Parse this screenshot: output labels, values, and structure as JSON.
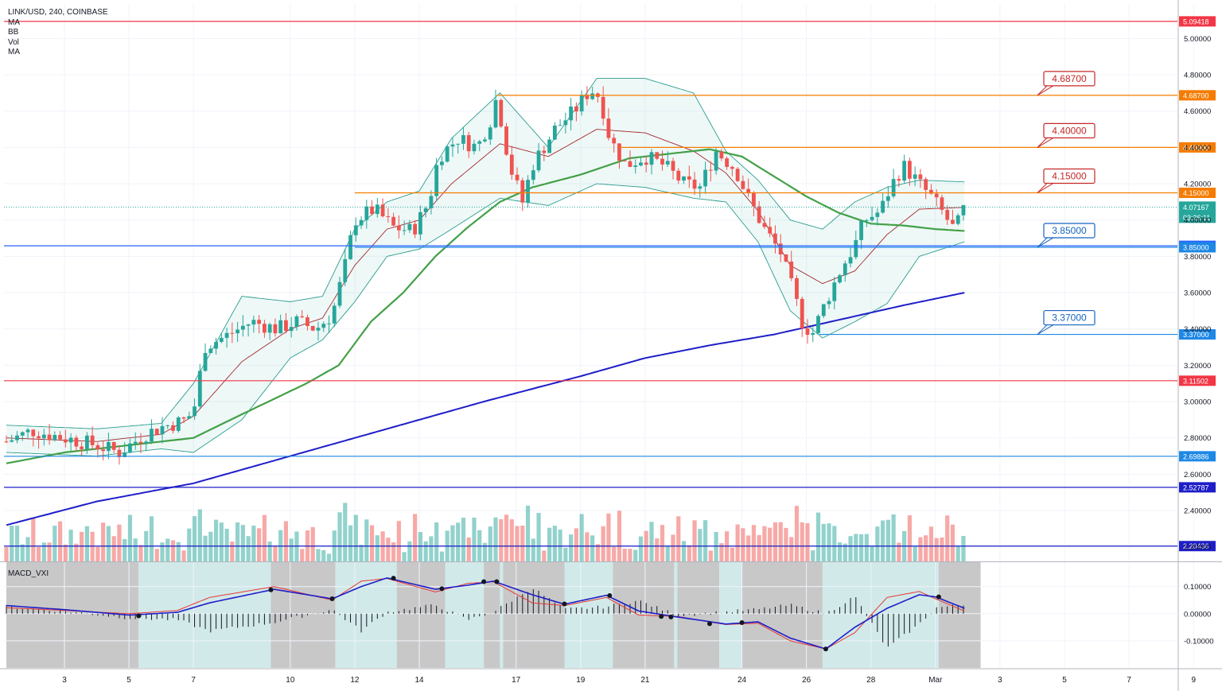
{
  "header": {
    "symbol_line": "LINK/USD, 240, COINBASE",
    "indicators": [
      "MA",
      "BB",
      "Vol",
      "MA"
    ]
  },
  "macd_title": "MACD_VXI",
  "chart_data": {
    "type": "candlestick",
    "symbol": "LINK/USD",
    "interval": "240",
    "exchange": "COINBASE",
    "price_axis": {
      "ylim": [
        2.12,
        5.19
      ],
      "ticks": [
        "5.00000",
        "4.80000",
        "4.60000",
        "4.40000",
        "4.20000",
        "4.00000",
        "3.80000",
        "3.60000",
        "3.40000",
        "3.20000",
        "3.00000",
        "2.80000",
        "2.60000",
        "2.40000",
        "2.20000"
      ]
    },
    "time_axis": {
      "labels": [
        {
          "text": "3",
          "day": 3
        },
        {
          "text": "5",
          "day": 5
        },
        {
          "text": "7",
          "day": 7
        },
        {
          "text": "10",
          "day": 10
        },
        {
          "text": "12",
          "day": 12
        },
        {
          "text": "14",
          "day": 14
        },
        {
          "text": "17",
          "day": 17
        },
        {
          "text": "19",
          "day": 19
        },
        {
          "text": "21",
          "day": 21
        },
        {
          "text": "24",
          "day": 24
        },
        {
          "text": "26",
          "day": 26
        },
        {
          "text": "28",
          "day": 28
        },
        {
          "text": "Mar",
          "day": 30
        },
        {
          "text": "3",
          "day": 32
        },
        {
          "text": "5",
          "day": 34
        },
        {
          "text": "7",
          "day": 36
        },
        {
          "text": "9",
          "day": 38
        }
      ]
    },
    "horizontal_levels": [
      {
        "value": 5.09418,
        "label": "5.09418",
        "color": "#f23645",
        "style": "line"
      },
      {
        "value": 4.687,
        "label": "4.68700",
        "color": "#f57c00",
        "style": "line",
        "start_day": 16.4
      },
      {
        "value": 4.4,
        "label": "4.40000",
        "color": "#f57c00",
        "style": "line",
        "start_day": 20.2
      },
      {
        "value": 4.15,
        "label": "4.15000",
        "color": "#f57c00",
        "style": "line",
        "start_day": 12.0
      },
      {
        "value": 3.85805,
        "label": "3.85805",
        "color": "#2962ff",
        "style": "line"
      },
      {
        "value": 3.85,
        "label": "3.85000",
        "color": "#1e88e5",
        "style": "line",
        "start_day": 12.0
      },
      {
        "value": 3.37,
        "label": "3.37000",
        "color": "#1e88e5",
        "style": "line",
        "start_day": 26.4
      },
      {
        "value": 3.11502,
        "label": "3.11502",
        "color": "#f23645",
        "style": "line"
      },
      {
        "value": 2.69886,
        "label": "2.69886",
        "color": "#1e88e5",
        "style": "line"
      },
      {
        "value": 2.52787,
        "label": "2.52787",
        "color": "#1e1ec8",
        "style": "line"
      },
      {
        "value": 2.20436,
        "label": "2.20436",
        "color": "#1e1ec8",
        "style": "line"
      }
    ],
    "callouts": [
      {
        "text": "4.68700",
        "value": 4.687,
        "color": "#c62828"
      },
      {
        "text": "4.40000",
        "value": 4.4,
        "color": "#c62828"
      },
      {
        "text": "4.15000",
        "value": 4.15,
        "color": "#c62828"
      },
      {
        "text": "3.85000",
        "value": 3.85,
        "color": "#1565c0"
      },
      {
        "text": "3.37000",
        "value": 3.37,
        "color": "#1565c0"
      }
    ],
    "last_price": {
      "value": 4.07167,
      "label": "4.07167",
      "countdown": "03:26:11",
      "color": "#26a69a"
    },
    "ohlc_waypoints": [
      [
        1.2,
        2.78
      ],
      [
        2.0,
        2.84
      ],
      [
        3.0,
        2.8
      ],
      [
        4.0,
        2.76
      ],
      [
        4.7,
        2.72
      ],
      [
        5.5,
        2.82
      ],
      [
        6.0,
        2.86
      ],
      [
        6.8,
        2.9
      ],
      [
        7.1,
        3.0
      ],
      [
        7.3,
        3.3
      ],
      [
        8.0,
        3.36
      ],
      [
        8.8,
        3.44
      ],
      [
        9.6,
        3.4
      ],
      [
        10.2,
        3.44
      ],
      [
        10.8,
        3.4
      ],
      [
        11.3,
        3.48
      ],
      [
        11.7,
        3.75
      ],
      [
        12.0,
        4.0
      ],
      [
        12.6,
        4.06
      ],
      [
        13.2,
        3.96
      ],
      [
        13.8,
        3.94
      ],
      [
        14.3,
        4.1
      ],
      [
        14.6,
        4.35
      ],
      [
        15.2,
        4.45
      ],
      [
        15.8,
        4.4
      ],
      [
        16.2,
        4.55
      ],
      [
        16.4,
        4.68
      ],
      [
        16.8,
        4.3
      ],
      [
        17.2,
        4.1
      ],
      [
        17.5,
        4.3
      ],
      [
        18.2,
        4.5
      ],
      [
        18.8,
        4.6
      ],
      [
        19.3,
        4.72
      ],
      [
        19.6,
        4.68
      ],
      [
        19.9,
        4.45
      ],
      [
        20.4,
        4.3
      ],
      [
        21.0,
        4.35
      ],
      [
        21.6,
        4.3
      ],
      [
        22.2,
        4.2
      ],
      [
        22.7,
        4.18
      ],
      [
        23.2,
        4.38
      ],
      [
        23.8,
        4.28
      ],
      [
        24.2,
        4.12
      ],
      [
        24.7,
        3.95
      ],
      [
        25.2,
        3.82
      ],
      [
        25.6,
        3.6
      ],
      [
        25.9,
        3.42
      ],
      [
        26.2,
        3.38
      ],
      [
        26.6,
        3.55
      ],
      [
        27.1,
        3.74
      ],
      [
        27.5,
        3.86
      ],
      [
        27.8,
        4.0
      ],
      [
        28.3,
        4.05
      ],
      [
        28.6,
        4.18
      ],
      [
        29.0,
        4.3
      ],
      [
        29.5,
        4.2
      ],
      [
        29.9,
        4.12
      ],
      [
        30.3,
        4.02
      ],
      [
        30.6,
        3.94
      ],
      [
        30.9,
        4.07
      ]
    ],
    "bollinger_bands": {
      "upper": [
        [
          1.2,
          2.87
        ],
        [
          4.0,
          2.85
        ],
        [
          6.0,
          2.88
        ],
        [
          7.0,
          3.1
        ],
        [
          8.5,
          3.58
        ],
        [
          10.0,
          3.55
        ],
        [
          11.0,
          3.58
        ],
        [
          12.0,
          3.95
        ],
        [
          13.0,
          4.1
        ],
        [
          14.0,
          4.16
        ],
        [
          15.0,
          4.45
        ],
        [
          16.5,
          4.7
        ],
        [
          18.0,
          4.4
        ],
        [
          19.5,
          4.78
        ],
        [
          21.0,
          4.78
        ],
        [
          22.5,
          4.7
        ],
        [
          23.5,
          4.38
        ],
        [
          24.5,
          4.22
        ],
        [
          25.5,
          4.0
        ],
        [
          26.5,
          3.95
        ],
        [
          27.5,
          4.1
        ],
        [
          28.5,
          4.18
        ],
        [
          29.5,
          4.22
        ],
        [
          30.9,
          4.21
        ]
      ],
      "middle": [
        [
          1.2,
          2.8
        ],
        [
          4.0,
          2.78
        ],
        [
          6.0,
          2.82
        ],
        [
          7.0,
          2.92
        ],
        [
          8.5,
          3.22
        ],
        [
          10.0,
          3.4
        ],
        [
          11.0,
          3.46
        ],
        [
          12.0,
          3.75
        ],
        [
          13.0,
          3.95
        ],
        [
          14.0,
          4.0
        ],
        [
          15.0,
          4.2
        ],
        [
          16.5,
          4.42
        ],
        [
          18.0,
          4.35
        ],
        [
          19.5,
          4.5
        ],
        [
          21.0,
          4.48
        ],
        [
          22.5,
          4.38
        ],
        [
          23.5,
          4.26
        ],
        [
          24.5,
          4.05
        ],
        [
          25.5,
          3.75
        ],
        [
          26.5,
          3.65
        ],
        [
          27.5,
          3.72
        ],
        [
          28.5,
          3.92
        ],
        [
          29.5,
          4.06
        ],
        [
          30.9,
          4.07
        ]
      ],
      "lower": [
        [
          1.2,
          2.72
        ],
        [
          4.0,
          2.7
        ],
        [
          6.0,
          2.74
        ],
        [
          7.0,
          2.72
        ],
        [
          8.5,
          2.9
        ],
        [
          10.0,
          3.24
        ],
        [
          11.0,
          3.34
        ],
        [
          12.0,
          3.55
        ],
        [
          13.0,
          3.8
        ],
        [
          14.0,
          3.84
        ],
        [
          15.0,
          3.95
        ],
        [
          16.5,
          4.12
        ],
        [
          18.0,
          4.08
        ],
        [
          19.5,
          4.2
        ],
        [
          21.0,
          4.18
        ],
        [
          22.5,
          4.12
        ],
        [
          23.5,
          4.1
        ],
        [
          24.5,
          3.88
        ],
        [
          25.5,
          3.5
        ],
        [
          26.5,
          3.35
        ],
        [
          27.5,
          3.44
        ],
        [
          28.5,
          3.54
        ],
        [
          29.5,
          3.8
        ],
        [
          30.9,
          3.88
        ]
      ]
    },
    "ma_green": [
      [
        1.2,
        2.66
      ],
      [
        3.0,
        2.72
      ],
      [
        5.0,
        2.76
      ],
      [
        7.0,
        2.8
      ],
      [
        8.5,
        2.93
      ],
      [
        10.5,
        3.1
      ],
      [
        11.5,
        3.2
      ],
      [
        12.5,
        3.44
      ],
      [
        13.5,
        3.6
      ],
      [
        14.5,
        3.8
      ],
      [
        15.5,
        3.96
      ],
      [
        16.5,
        4.1
      ],
      [
        17.5,
        4.18
      ],
      [
        19.0,
        4.25
      ],
      [
        20.5,
        4.34
      ],
      [
        22.0,
        4.37
      ],
      [
        23.0,
        4.39
      ],
      [
        24.0,
        4.35
      ],
      [
        25.0,
        4.24
      ],
      [
        26.0,
        4.13
      ],
      [
        27.0,
        4.04
      ],
      [
        28.0,
        3.98
      ],
      [
        29.0,
        3.97
      ],
      [
        30.0,
        3.95
      ],
      [
        30.9,
        3.94
      ]
    ],
    "ma_blue": [
      [
        1.2,
        2.32
      ],
      [
        4.0,
        2.45
      ],
      [
        7.0,
        2.55
      ],
      [
        10.0,
        2.7
      ],
      [
        13.0,
        2.85
      ],
      [
        16.0,
        3.0
      ],
      [
        19.0,
        3.14
      ],
      [
        21.0,
        3.24
      ],
      [
        23.0,
        3.31
      ],
      [
        25.0,
        3.37
      ],
      [
        27.0,
        3.45
      ],
      [
        29.0,
        3.53
      ],
      [
        30.9,
        3.6
      ]
    ],
    "macd": {
      "ylim": [
        -0.2,
        0.19
      ],
      "ticks": [
        "0.10000",
        "0.00000",
        "-0.10000"
      ],
      "macd_line": [
        [
          1.2,
          0.03
        ],
        [
          3.0,
          0.015
        ],
        [
          5.0,
          -0.005
        ],
        [
          6.5,
          0.005
        ],
        [
          7.5,
          0.04
        ],
        [
          9.5,
          0.09
        ],
        [
          11.3,
          0.055
        ],
        [
          12.2,
          0.1
        ],
        [
          13.0,
          0.132
        ],
        [
          14.5,
          0.09
        ],
        [
          15.5,
          0.105
        ],
        [
          16.3,
          0.12
        ],
        [
          17.5,
          0.07
        ],
        [
          18.5,
          0.035
        ],
        [
          19.8,
          0.068
        ],
        [
          20.8,
          0.01
        ],
        [
          22.0,
          -0.012
        ],
        [
          23.5,
          -0.038
        ],
        [
          24.5,
          -0.03
        ],
        [
          25.5,
          -0.09
        ],
        [
          26.6,
          -0.13
        ],
        [
          27.5,
          -0.05
        ],
        [
          28.5,
          0.02
        ],
        [
          29.5,
          0.07
        ],
        [
          30.0,
          0.062
        ],
        [
          30.9,
          0.02
        ]
      ],
      "signal_line": [
        [
          1.2,
          0.022
        ],
        [
          3.0,
          0.012
        ],
        [
          5.0,
          0.0
        ],
        [
          6.5,
          0.012
        ],
        [
          7.5,
          0.06
        ],
        [
          9.5,
          0.1
        ],
        [
          11.3,
          0.05
        ],
        [
          12.2,
          0.12
        ],
        [
          13.0,
          0.13
        ],
        [
          14.5,
          0.08
        ],
        [
          15.5,
          0.112
        ],
        [
          16.3,
          0.118
        ],
        [
          17.5,
          0.04
        ],
        [
          18.5,
          0.03
        ],
        [
          19.8,
          0.06
        ],
        [
          20.8,
          -0.005
        ],
        [
          22.0,
          -0.01
        ],
        [
          23.5,
          -0.04
        ],
        [
          24.5,
          -0.035
        ],
        [
          25.5,
          -0.1
        ],
        [
          26.6,
          -0.13
        ],
        [
          27.5,
          -0.07
        ],
        [
          28.5,
          0.06
        ],
        [
          29.5,
          0.082
        ],
        [
          30.0,
          0.055
        ],
        [
          30.9,
          0.01
        ]
      ],
      "crosses": [
        [
          5.3,
          -0.008
        ],
        [
          9.4,
          0.088
        ],
        [
          11.3,
          0.055
        ],
        [
          13.2,
          0.131
        ],
        [
          14.7,
          0.092
        ],
        [
          16.0,
          0.118
        ],
        [
          16.4,
          0.118
        ],
        [
          18.5,
          0.036
        ],
        [
          19.9,
          0.067
        ],
        [
          21.5,
          -0.01
        ],
        [
          21.8,
          -0.012
        ],
        [
          23.0,
          -0.037
        ],
        [
          24.0,
          -0.033
        ],
        [
          26.6,
          -0.13
        ],
        [
          30.1,
          0.062
        ]
      ],
      "zones": [
        {
          "from": 1.2,
          "to": 5.3,
          "state": "down"
        },
        {
          "from": 5.3,
          "to": 9.4,
          "state": "up"
        },
        {
          "from": 9.4,
          "to": 11.4,
          "state": "down"
        },
        {
          "from": 11.4,
          "to": 13.3,
          "state": "up"
        },
        {
          "from": 13.3,
          "to": 14.8,
          "state": "down"
        },
        {
          "from": 14.8,
          "to": 16.0,
          "state": "up"
        },
        {
          "from": 16.0,
          "to": 16.5,
          "state": "down"
        },
        {
          "from": 16.5,
          "to": 16.6,
          "state": "up"
        },
        {
          "from": 16.6,
          "to": 18.5,
          "state": "down"
        },
        {
          "from": 18.5,
          "to": 20.0,
          "state": "up"
        },
        {
          "from": 20.0,
          "to": 21.9,
          "state": "down"
        },
        {
          "from": 21.9,
          "to": 22.0,
          "state": "up"
        },
        {
          "from": 22.0,
          "to": 23.3,
          "state": "down"
        },
        {
          "from": 23.3,
          "to": 24.0,
          "state": "up"
        },
        {
          "from": 24.0,
          "to": 26.5,
          "state": "down"
        },
        {
          "from": 26.5,
          "to": 30.1,
          "state": "up"
        },
        {
          "from": 30.1,
          "to": 31.4,
          "state": "down"
        }
      ]
    }
  }
}
